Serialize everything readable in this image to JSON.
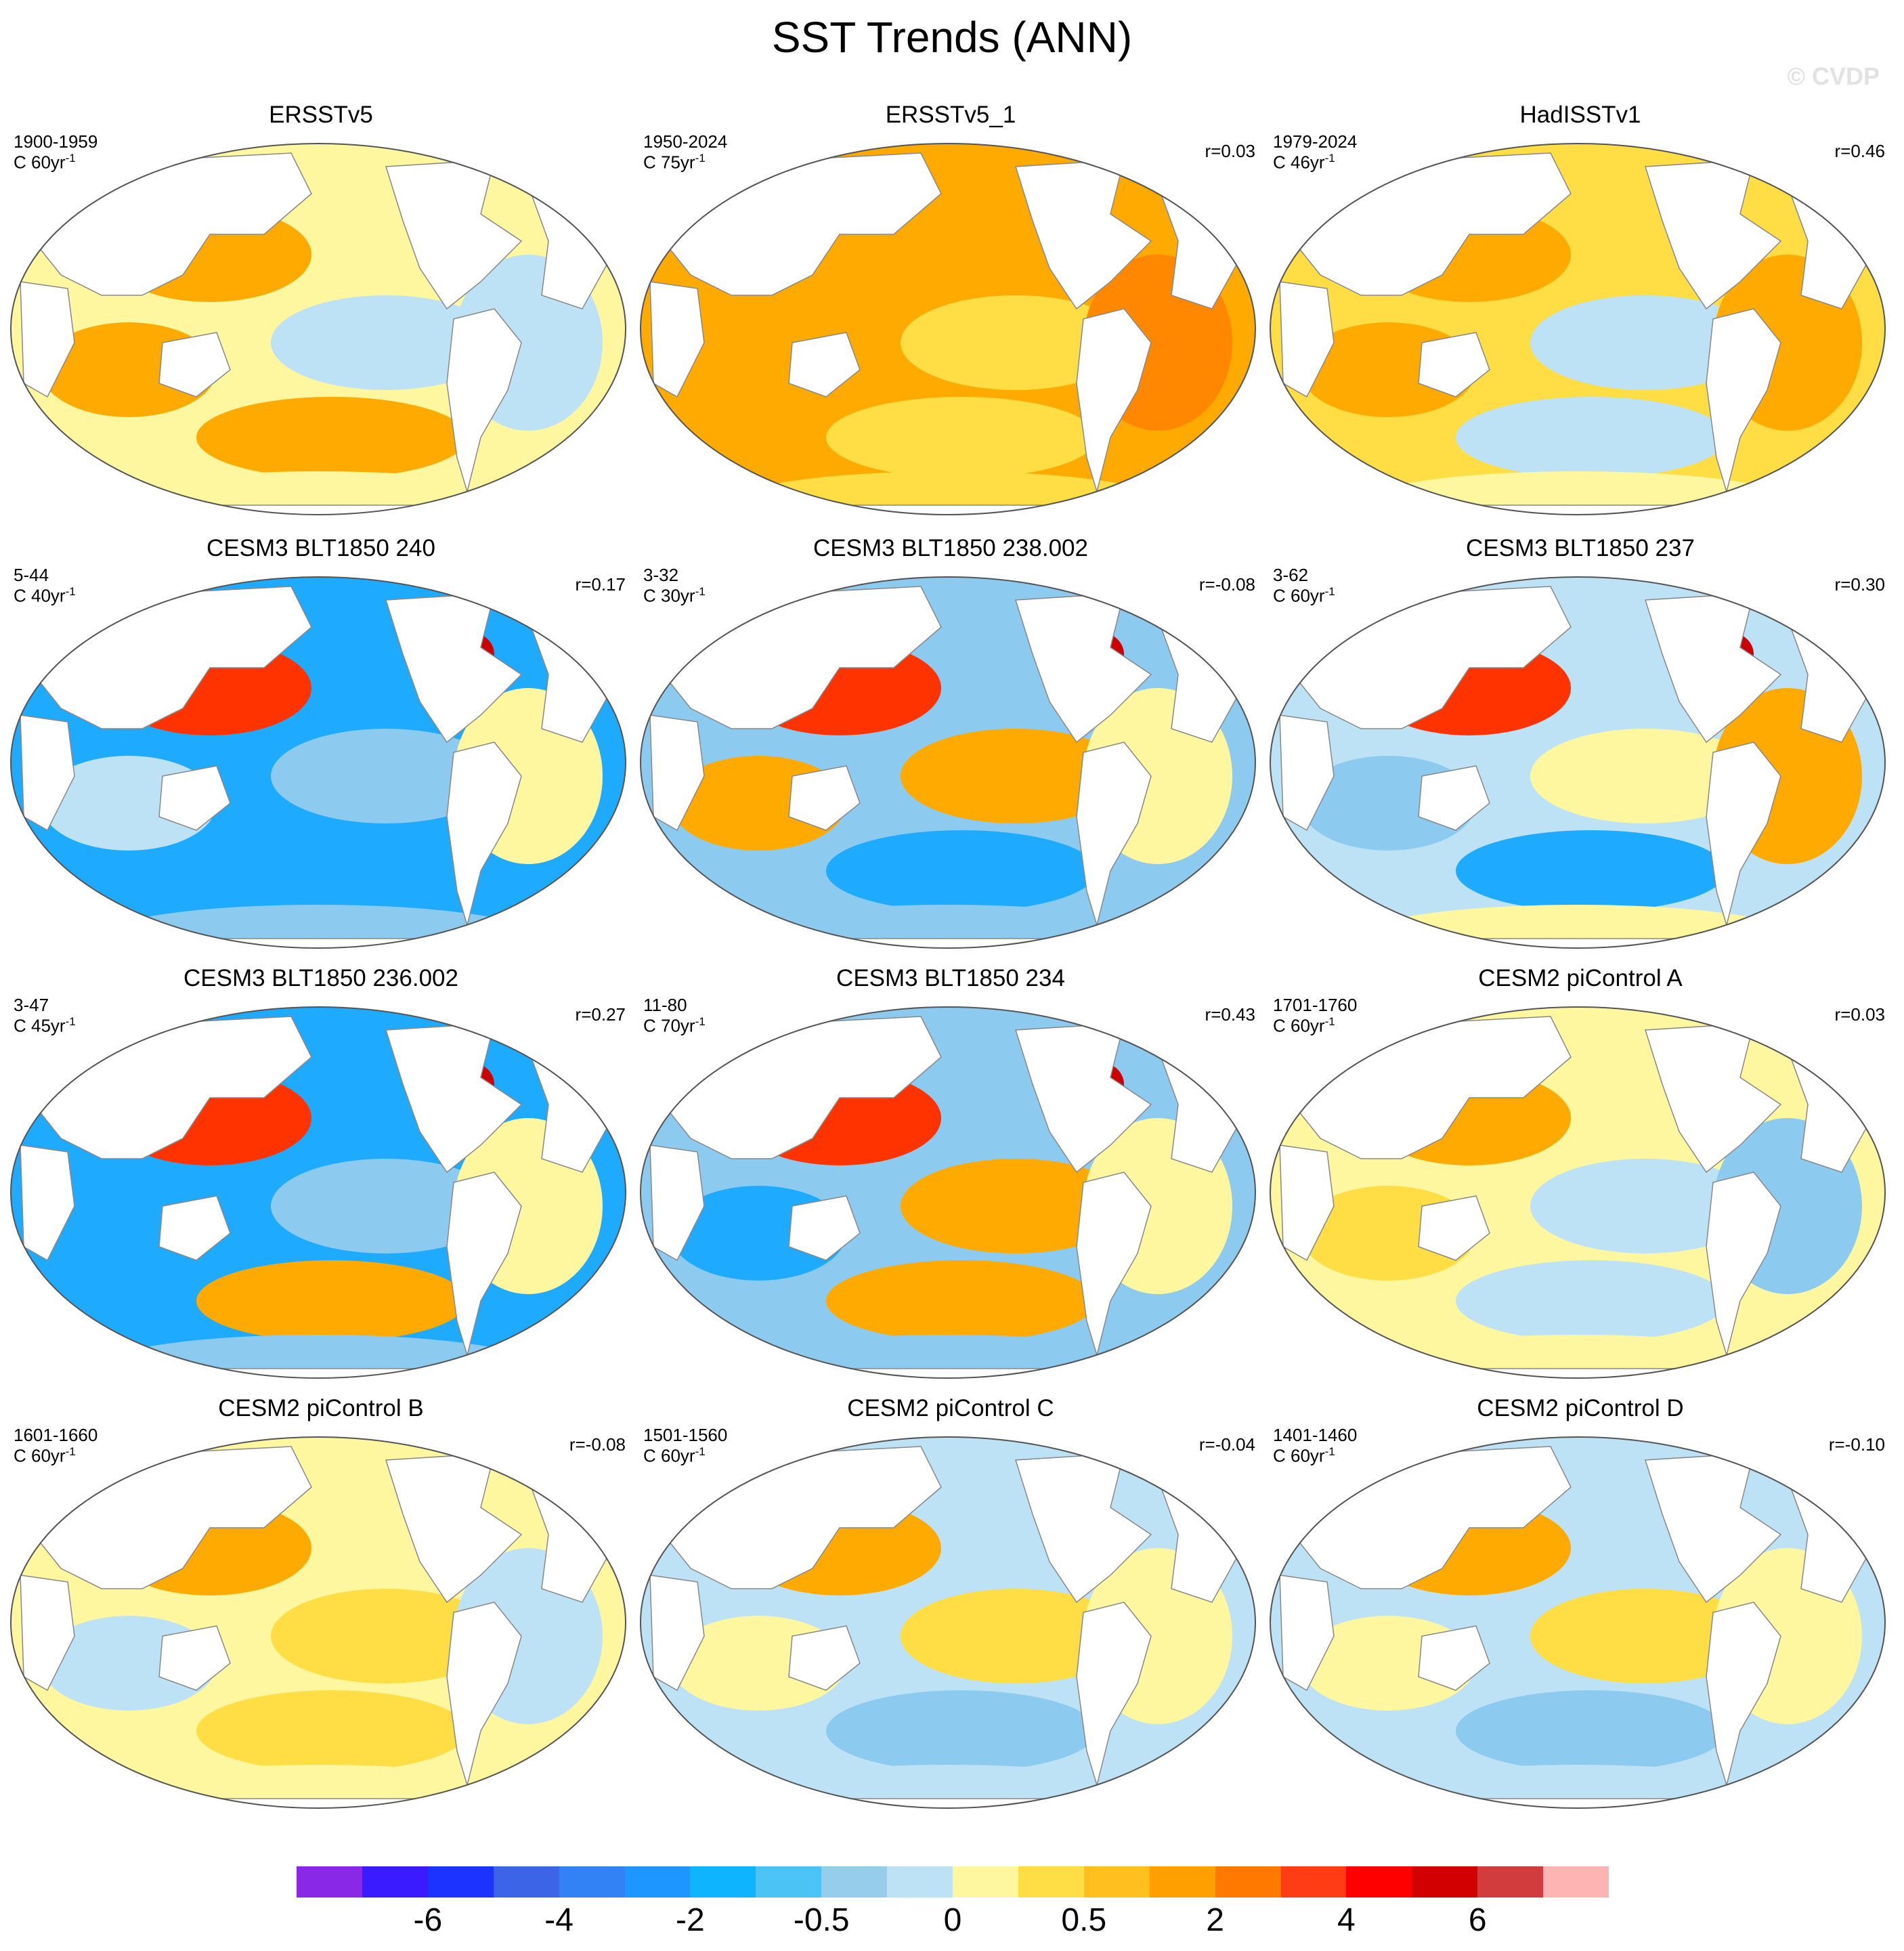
{
  "title": "SST Trends (ANN)",
  "watermark": "© CVDP",
  "panels": [
    {
      "title": "ERSSTv5",
      "years": "1900-1959",
      "scale": "C 60yr",
      "scale_sup": "-1",
      "r": "",
      "base": "yellow",
      "blobs": [
        "orange",
        "lightblue",
        "orange",
        "orange",
        "lightblue",
        "yellow"
      ]
    },
    {
      "title": "ERSSTv5_1",
      "years": "1950-2024",
      "scale": "C 75yr",
      "scale_sup": "-1",
      "r": "r=0.03",
      "base": "orange",
      "blobs": [
        "orange",
        "gold",
        "orange",
        "gold",
        "darkorange",
        "gold"
      ]
    },
    {
      "title": "HadISSTv1",
      "years": "1979-2024",
      "scale": "C 46yr",
      "scale_sup": "-1",
      "r": "r=0.46",
      "base": "gold",
      "blobs": [
        "orange",
        "lightblue",
        "orange",
        "lightblue",
        "orange",
        "yellow"
      ]
    },
    {
      "title": "CESM3 BLT1850 240",
      "years": "5-44",
      "scale": "C 40yr",
      "scale_sup": "-1",
      "r": "r=0.17",
      "base": "blue",
      "blobs": [
        "red",
        "skyblue",
        "lightblue",
        "blue",
        "yellow",
        "skyblue"
      ]
    },
    {
      "title": "CESM3 BLT1850 238.002",
      "years": "3-32",
      "scale": "C 30yr",
      "scale_sup": "-1",
      "r": "r=-0.08",
      "base": "skyblue",
      "blobs": [
        "red",
        "orange",
        "orange",
        "blue",
        "yellow",
        "skyblue"
      ]
    },
    {
      "title": "CESM3 BLT1850 237",
      "years": "3-62",
      "scale": "C 60yr",
      "scale_sup": "-1",
      "r": "r=0.30",
      "base": "lightblue",
      "blobs": [
        "red",
        "yellow",
        "skyblue",
        "blue",
        "orange",
        "yellow"
      ]
    },
    {
      "title": "CESM3 BLT1850 236.002",
      "years": "3-47",
      "scale": "C 45yr",
      "scale_sup": "-1",
      "r": "r=0.27",
      "base": "blue",
      "blobs": [
        "red",
        "skyblue",
        "blue",
        "orange",
        "yellow",
        "skyblue"
      ]
    },
    {
      "title": "CESM3 BLT1850 234",
      "years": "11-80",
      "scale": "C 70yr",
      "scale_sup": "-1",
      "r": "r=0.43",
      "base": "skyblue",
      "blobs": [
        "red",
        "orange",
        "blue",
        "orange",
        "yellow",
        "skyblue"
      ]
    },
    {
      "title": "CESM2 piControl A",
      "years": "1701-1760",
      "scale": "C 60yr",
      "scale_sup": "-1",
      "r": "r=0.03",
      "base": "yellow",
      "blobs": [
        "orange",
        "lightblue",
        "gold",
        "lightblue",
        "skyblue",
        "yellow"
      ]
    },
    {
      "title": "CESM2 piControl B",
      "years": "1601-1660",
      "scale": "C 60yr",
      "scale_sup": "-1",
      "r": "r=-0.08",
      "base": "yellow",
      "blobs": [
        "orange",
        "gold",
        "lightblue",
        "gold",
        "lightblue",
        "yellow"
      ]
    },
    {
      "title": "CESM2 piControl C",
      "years": "1501-1560",
      "scale": "C 60yr",
      "scale_sup": "-1",
      "r": "r=-0.04",
      "base": "lightblue",
      "blobs": [
        "orange",
        "gold",
        "yellow",
        "skyblue",
        "yellow",
        "lightblue"
      ]
    },
    {
      "title": "CESM2 piControl D",
      "years": "1401-1460",
      "scale": "C 60yr",
      "scale_sup": "-1",
      "r": "r=-0.10",
      "base": "lightblue",
      "blobs": [
        "orange",
        "gold",
        "yellow",
        "skyblue",
        "yellow",
        "lightblue"
      ]
    }
  ],
  "palette": {
    "yellow": "#fff7a0",
    "gold": "#ffdd44",
    "orange": "#ffaa00",
    "darkorange": "#ff8800",
    "red": "#ff3300",
    "lightblue": "#bde2f5",
    "skyblue": "#8dcaf0",
    "blue": "#1eaaff",
    "land": "#ffffff",
    "outline": "#888888"
  },
  "colorbar": {
    "colors": [
      "#8a28e8",
      "#3a1aff",
      "#1c33ff",
      "#3c64e6",
      "#3382f5",
      "#1e96ff",
      "#0fb4ff",
      "#4bc3f5",
      "#96cdeb",
      "#bde2f5",
      "#fff7a0",
      "#ffdd44",
      "#ffbf1e",
      "#ffa000",
      "#ff7800",
      "#ff3c14",
      "#ff0000",
      "#d20000",
      "#d23c3c",
      "#ffb4b4"
    ],
    "labels": [
      "-6",
      "-4",
      "-2",
      "-0.5",
      "0",
      "0.5",
      "2",
      "4",
      "6"
    ],
    "label_bounds": [
      2,
      4,
      6,
      8,
      10,
      12,
      14,
      16,
      18
    ]
  }
}
